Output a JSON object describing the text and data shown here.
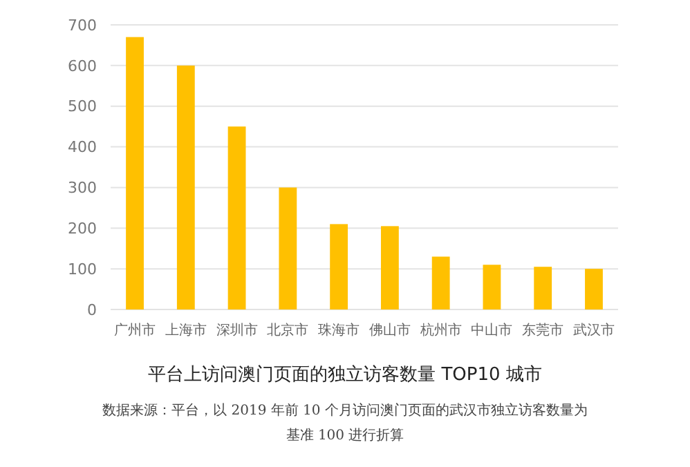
{
  "chart_data": {
    "type": "bar",
    "title": "平台上访问澳门页面的独立访客数量 TOP10 城市",
    "annotations": [
      "数据来源：平台，以 2019 年前 10 个月访问澳门页面的武汉市独立访客数量为基准 100 进行折算"
    ],
    "categories": [
      "广州市",
      "上海市",
      "深圳市",
      "北京市",
      "珠海市",
      "佛山市",
      "杭州市",
      "中山市",
      "东莞市",
      "武汉市"
    ],
    "values": [
      670,
      600,
      450,
      300,
      210,
      205,
      130,
      110,
      105,
      100
    ],
    "color": "#ffc000",
    "ylim": [
      0,
      700
    ],
    "yticks": [
      0,
      100,
      200,
      300,
      400,
      500,
      600,
      700
    ],
    "grid": "y"
  }
}
